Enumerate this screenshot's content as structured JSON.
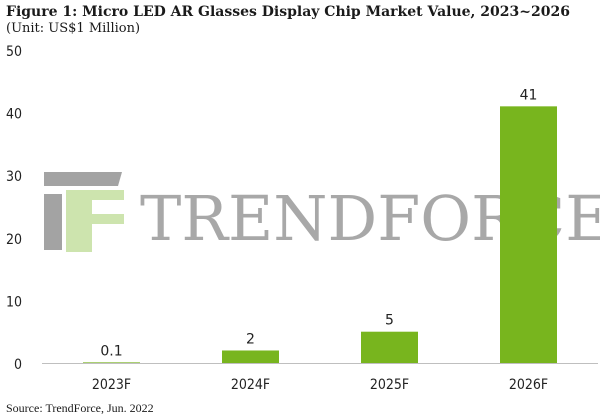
{
  "title": "Figure 1: Micro LED AR Glasses Display Chip Market Value, 2023~2026",
  "unit": "(Unit: US$1 Million)",
  "source": "Source: TrendForce, Jun. 2022",
  "watermark": {
    "text": "TRENDFORCE",
    "logo_icon": "trendforce-tf-logo-icon"
  },
  "colors": {
    "bar": "#78b51e",
    "axis": "#bfbfbf",
    "watermark_gray": "#9a9a9a",
    "watermark_green": "#c8e2a6"
  },
  "chart_data": {
    "type": "bar",
    "categories": [
      "2023F",
      "2024F",
      "2025F",
      "2026F"
    ],
    "values": [
      0.1,
      2,
      5,
      41
    ],
    "value_labels": [
      "0.1",
      "2",
      "5",
      "41"
    ],
    "ylim": [
      0,
      50
    ],
    "yticks": [
      "0",
      "10",
      "20",
      "30",
      "40",
      "50"
    ],
    "grid": false,
    "legend": "none"
  }
}
